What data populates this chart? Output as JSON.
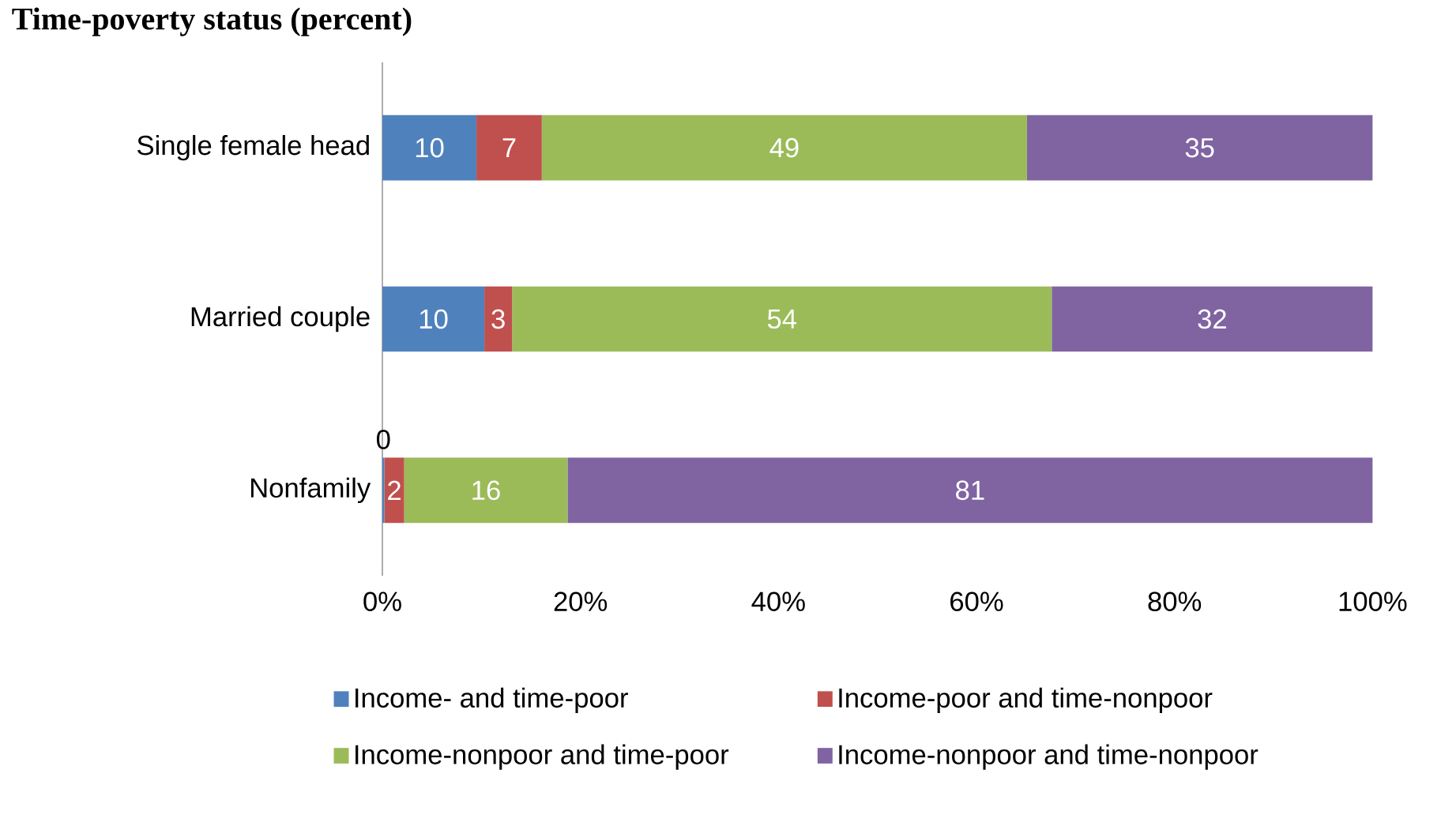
{
  "chart_data": {
    "type": "bar",
    "title": "Time-poverty status (percent)",
    "orientation": "horizontal",
    "stacked": true,
    "categories": [
      "Single female head",
      "Married couple",
      "Nonfamily"
    ],
    "series": [
      {
        "name": "Income- and time-poor",
        "color": "#4f81bd",
        "values": [
          9.5,
          10.3,
          0.2
        ],
        "value_labels": [
          "10",
          "10",
          "0"
        ]
      },
      {
        "name": "Income-poor and time-nonpoor",
        "color": "#c0504d",
        "values": [
          6.6,
          2.8,
          2.0
        ],
        "value_labels": [
          "7",
          "3",
          "2"
        ]
      },
      {
        "name": "Income-nonpoor and time-poor",
        "color": "#9bbb59",
        "values": [
          49.0,
          54.5,
          16.5
        ],
        "value_labels": [
          "49",
          "54",
          "16"
        ]
      },
      {
        "name": "Income-nonpoor and time-nonpoor",
        "color": "#8064a2",
        "values": [
          34.9,
          32.4,
          81.3
        ],
        "value_labels": [
          "35",
          "32",
          "81"
        ]
      }
    ],
    "xlim": [
      0,
      100
    ],
    "xticks": [
      {
        "value": 0,
        "label": "0%"
      },
      {
        "value": 20,
        "label": "20%"
      },
      {
        "value": 40,
        "label": "40%"
      },
      {
        "value": 60,
        "label": "60%"
      },
      {
        "value": 80,
        "label": "80%"
      },
      {
        "value": 100,
        "label": "100%"
      }
    ],
    "grid": false,
    "legend": "bottom"
  }
}
